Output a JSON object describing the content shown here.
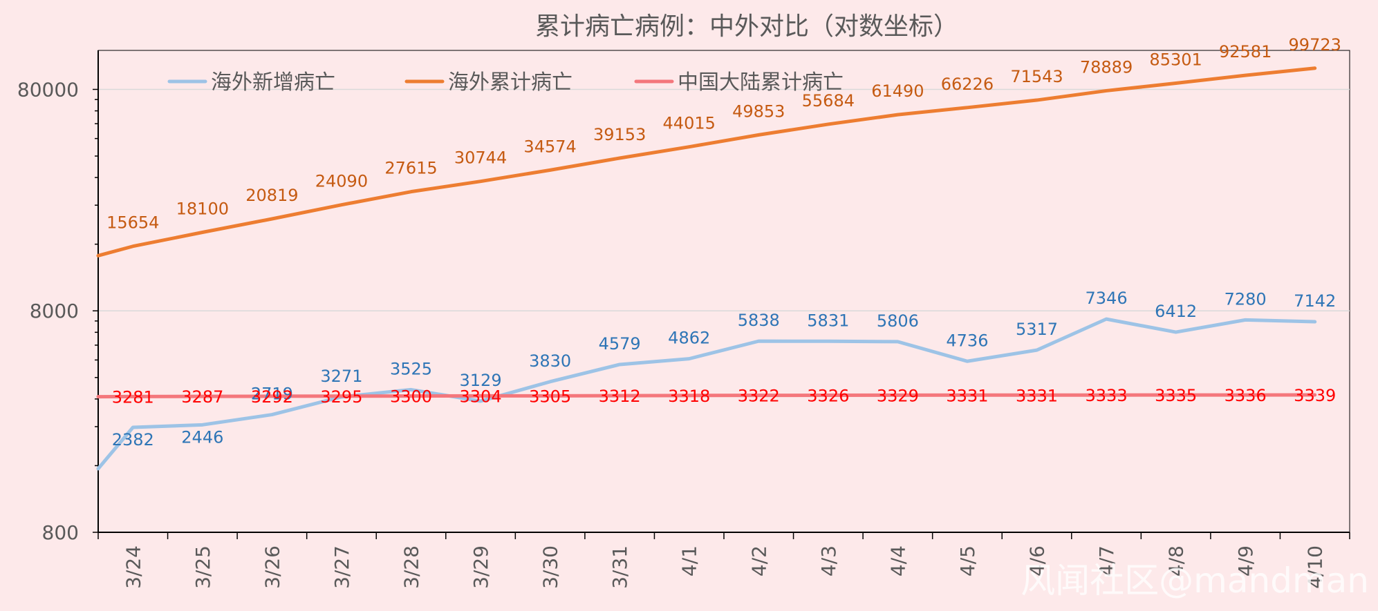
{
  "chart_data": {
    "type": "line",
    "title": "累计病亡病例：中外对比（对数坐标）",
    "yscale": "log",
    "ylim": [
      800,
      120000
    ],
    "yticks": [
      800,
      8000,
      80000
    ],
    "ytick_labels": [
      "800",
      "8000",
      "80000"
    ],
    "categories": [
      "3/24",
      "3/25",
      "3/26",
      "3/27",
      "3/28",
      "3/29",
      "3/30",
      "3/31",
      "4/1",
      "4/2",
      "4/3",
      "4/4",
      "4/5",
      "4/6",
      "4/7",
      "4/8",
      "4/9",
      "4/10"
    ],
    "series": [
      {
        "name": "海外新增病亡",
        "color": "#9dc3e6",
        "label_color": "#2e75b6",
        "start_value": 1550,
        "values": [
          2382,
          2446,
          2719,
          3271,
          3525,
          3129,
          3830,
          4579,
          4862,
          5838,
          5831,
          5806,
          4736,
          5317,
          7346,
          6412,
          7280,
          7142
        ],
        "labels": [
          "2382",
          "2446",
          "2719",
          "3271",
          "3525",
          "3129",
          "3830",
          "4579",
          "4862",
          "5838",
          "5831",
          "5806",
          "4736",
          "5317",
          "7346",
          "6412",
          "7280",
          "7142"
        ]
      },
      {
        "name": "海外累计病亡",
        "color": "#ed7d31",
        "label_color": "#c55a11",
        "start_value": 14200,
        "values": [
          15654,
          18100,
          20819,
          24090,
          27615,
          30744,
          34574,
          39153,
          44015,
          49853,
          55684,
          61490,
          66226,
          71543,
          78889,
          85301,
          92581,
          99723
        ],
        "labels": [
          "15654",
          "18100",
          "20819",
          "24090",
          "27615",
          "30744",
          "34574",
          "39153",
          "44015",
          "49853",
          "55684",
          "61490",
          "66226",
          "71543",
          "78889",
          "85301",
          "92581",
          "99723"
        ]
      },
      {
        "name": "中国大陆累计病亡",
        "color": "#f4777c",
        "label_color": "#ff0000",
        "start_value": 3277,
        "values": [
          3281,
          3287,
          3292,
          3295,
          3300,
          3304,
          3305,
          3312,
          3318,
          3322,
          3326,
          3329,
          3331,
          3331,
          3333,
          3335,
          3336,
          3339
        ],
        "labels": [
          "3281",
          "3287",
          "3292",
          "3295",
          "3300",
          "3304",
          "3305",
          "3312",
          "3318",
          "3322",
          "3326",
          "3329",
          "3331",
          "3331",
          "3333",
          "3335",
          "3336",
          "3339"
        ]
      }
    ],
    "legend": "top",
    "grid": true
  },
  "watermark": "风闻社区@mandman"
}
